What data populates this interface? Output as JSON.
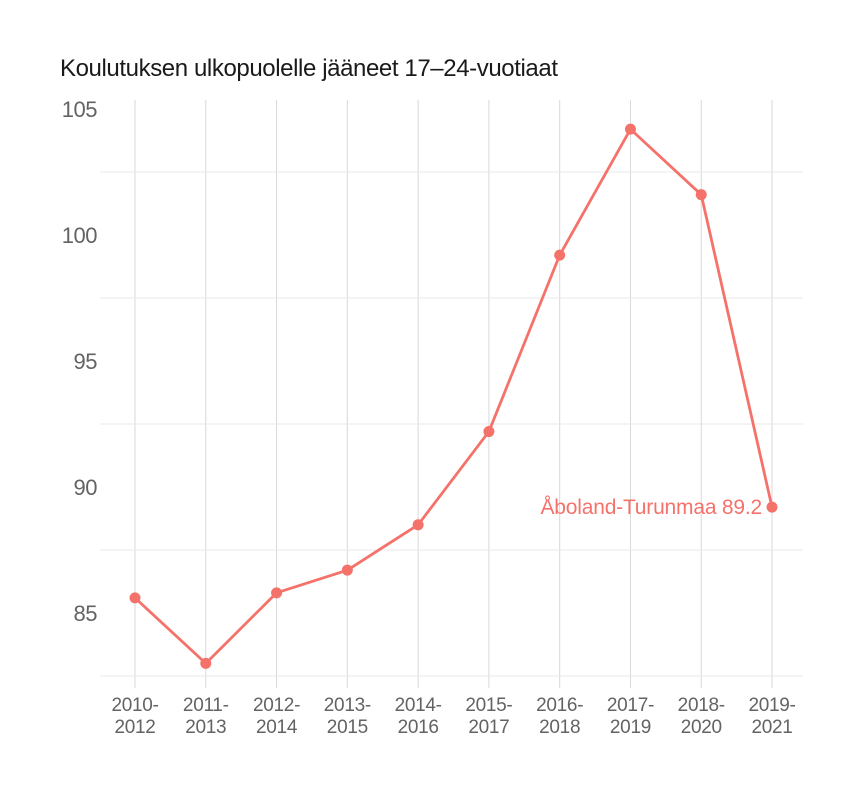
{
  "title": "Koulutuksen ulkopuolelle jääneet 17–24-vuotiaat",
  "colors": {
    "line": "#f5726b",
    "point": "#f5726b",
    "annotation_text": "#f5726b",
    "grid_vertical": "#d8d8d8",
    "grid_horizontal": "#eaeaea",
    "tick_label": "#636363",
    "title_text": "#1a1a1a",
    "background": "#ffffff"
  },
  "chart_data": {
    "type": "line",
    "title": "Koulutuksen ulkopuolelle jääneet 17–24-vuotiaat",
    "series_name": "Åboland-Turunmaa",
    "categories": [
      "2010-2012",
      "2011-2013",
      "2012-2014",
      "2013-2015",
      "2014-2016",
      "2015-2017",
      "2016-2018",
      "2017-2019",
      "2018-2020",
      "2019-2021"
    ],
    "values": [
      85.6,
      83.0,
      85.8,
      86.7,
      88.5,
      92.2,
      99.2,
      104.2,
      101.6,
      89.2
    ],
    "last_value_label": "Åboland-Turunmaa 89.2",
    "yticks": [
      85,
      90,
      95,
      100,
      105
    ],
    "grid_y_minor": [
      82.5,
      87.5,
      92.5,
      97.5,
      102.5
    ],
    "ylim": [
      82.2,
      105.4
    ],
    "xlabel": "",
    "ylabel": "",
    "grid": "vertical-major-and-horizontal-minor",
    "legend": "none",
    "point_markers": true
  }
}
